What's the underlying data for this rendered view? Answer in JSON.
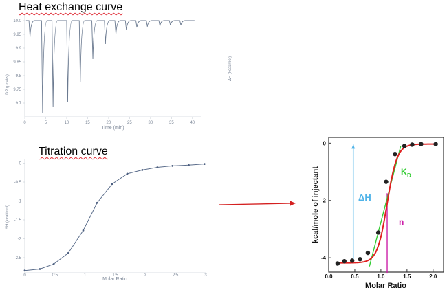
{
  "titles": {
    "heat_exchange": "Heat exchange curve",
    "titration": "Titration curve"
  },
  "chart_data": [
    {
      "type": "line",
      "title": "Heat exchange curve",
      "xlabel": "Time (min)",
      "ylabel": "DP (µcal/s)",
      "right_label": "ΔH (kcal/mol)",
      "xlim": [
        0,
        42
      ],
      "ylim": [
        9.65,
        10.02
      ],
      "x_ticks": [
        "0",
        "5",
        "10",
        "15",
        "20",
        "25",
        "30",
        "35",
        "40"
      ],
      "y_ticks": [
        "10.0",
        "9.95",
        "9.9",
        "9.85",
        "9.8",
        "9.75",
        "9.7"
      ],
      "baseline": 10.0,
      "injections": [
        {
          "t": 1.0,
          "min": 9.94
        },
        {
          "t": 4.0,
          "min": 9.665
        },
        {
          "t": 6.5,
          "min": 9.685
        },
        {
          "t": 10.0,
          "min": 9.705
        },
        {
          "t": 13.0,
          "min": 9.775
        },
        {
          "t": 16.0,
          "min": 9.86
        },
        {
          "t": 19.0,
          "min": 9.915
        },
        {
          "t": 21.5,
          "min": 9.95
        },
        {
          "t": 24.0,
          "min": 9.965
        },
        {
          "t": 26.5,
          "min": 9.975
        },
        {
          "t": 29.0,
          "min": 9.978
        },
        {
          "t": 32.0,
          "min": 9.98
        },
        {
          "t": 34.5,
          "min": 9.983
        },
        {
          "t": 37.0,
          "min": 9.983
        }
      ]
    },
    {
      "type": "line",
      "title": "Titration curve",
      "xlabel": "Molar Ratio",
      "ylabel": "ΔH (kcal/mol)",
      "xlim": [
        0,
        3
      ],
      "ylim": [
        -2.9,
        0.1
      ],
      "x_ticks": [
        "0",
        "0.5",
        "1",
        "1.5",
        "2",
        "2.5",
        "3"
      ],
      "y_ticks": [
        "0",
        "-0.5",
        "-1",
        "-1.5",
        "-2",
        "-2.5"
      ],
      "x": [
        0.0,
        0.25,
        0.48,
        0.72,
        0.97,
        1.2,
        1.45,
        1.7,
        1.95,
        2.2,
        2.45,
        2.72,
        2.98
      ],
      "y": [
        -2.84,
        -2.8,
        -2.67,
        -2.38,
        -1.78,
        -1.05,
        -0.55,
        -0.28,
        -0.18,
        -0.11,
        -0.07,
        -0.05,
        -0.02
      ]
    },
    {
      "type": "scatter",
      "xlabel": "Molar Ratio",
      "ylabel": "kcal/mole of injectant",
      "xlim": [
        0,
        2.2
      ],
      "ylim": [
        -4.5,
        0.2
      ],
      "x_ticks": [
        "0.0",
        "0.5",
        "1.0",
        "1.5",
        "2.0"
      ],
      "y_ticks": [
        "0",
        "-2",
        "-4"
      ],
      "x": [
        0.17,
        0.3,
        0.45,
        0.6,
        0.75,
        0.95,
        1.1,
        1.27,
        1.45,
        1.6,
        1.77,
        2.05
      ],
      "y": [
        -4.2,
        -4.12,
        -4.1,
        -4.05,
        -3.83,
        -3.12,
        -1.35,
        -0.38,
        -0.1,
        -0.05,
        -0.03,
        -0.03
      ],
      "annotations": {
        "delta_h": "ΔH",
        "kd_main": "K",
        "kd_sub": "D",
        "n": "n"
      },
      "colors": {
        "fit": "#e02020",
        "tangent": "#33cc33",
        "delta_h_arrow": "#4fb3e8",
        "n_line": "#cc1fa8",
        "points": "#222222"
      }
    }
  ]
}
